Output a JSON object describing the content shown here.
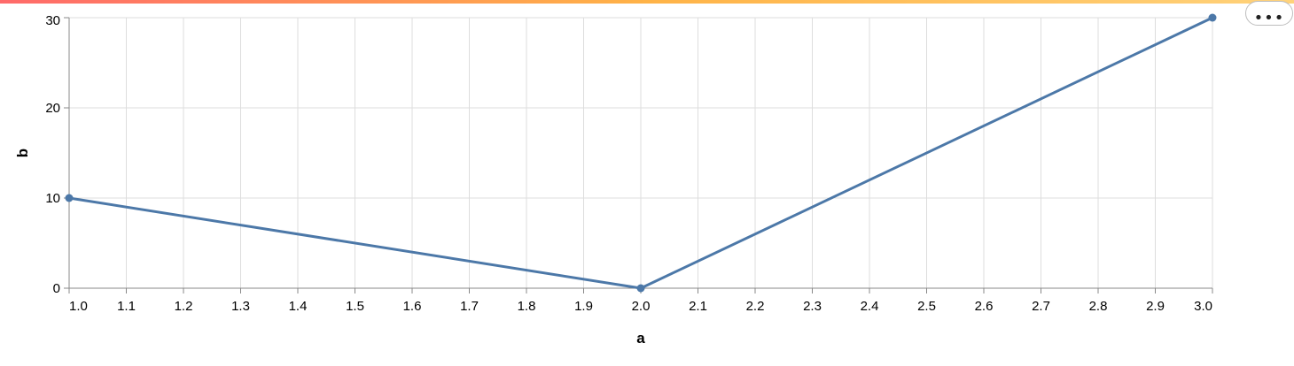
{
  "chart_data": {
    "type": "line",
    "xlabel": "a",
    "ylabel": "b",
    "xlim": [
      1.0,
      3.0
    ],
    "ylim": [
      0,
      30
    ],
    "x_ticks": [
      "1.0",
      "1.1",
      "1.2",
      "1.3",
      "1.4",
      "1.5",
      "1.6",
      "1.7",
      "1.8",
      "1.9",
      "2.0",
      "2.1",
      "2.2",
      "2.3",
      "2.4",
      "2.5",
      "2.6",
      "2.7",
      "2.8",
      "2.9",
      "3.0"
    ],
    "y_ticks": [
      "0",
      "10",
      "20",
      "30"
    ],
    "grid": true,
    "series": [
      {
        "x": [
          1.0,
          2.0,
          3.0
        ],
        "y": [
          10,
          0,
          30
        ],
        "color": "#4c78a8",
        "markers": true
      }
    ]
  },
  "menu": {
    "icon": "ellipsis-icon",
    "label": "•••"
  }
}
